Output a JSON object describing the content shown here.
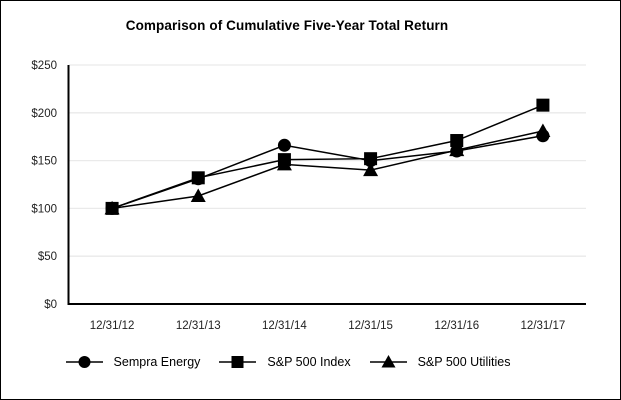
{
  "chart_data": {
    "type": "line",
    "title": "Comparison of Cumulative Five-Year Total Return",
    "categories": [
      "12/31/12",
      "12/31/13",
      "12/31/14",
      "12/31/15",
      "12/31/16",
      "12/31/17"
    ],
    "series": [
      {
        "name": "Sempra Energy",
        "marker": "circle",
        "z": 1,
        "values": [
          100,
          131,
          166,
          150,
          160,
          176
        ]
      },
      {
        "name": "S&P 500 Index",
        "marker": "square",
        "z": 2,
        "values": [
          100,
          132,
          151,
          152,
          171,
          208
        ]
      },
      {
        "name": "S&P 500 Utilities",
        "marker": "triangle",
        "z": 0,
        "values": [
          100,
          113,
          146,
          140,
          161,
          181
        ]
      }
    ],
    "ylim": [
      0,
      250
    ],
    "ytick_step": 50,
    "ytick_prefix": "$",
    "xlabel": "",
    "ylabel": "",
    "grid": "horizontal",
    "legend_position": "bottom",
    "line_color": "#000000",
    "grid_color": "#eaeaea",
    "background": "#ffffff"
  }
}
